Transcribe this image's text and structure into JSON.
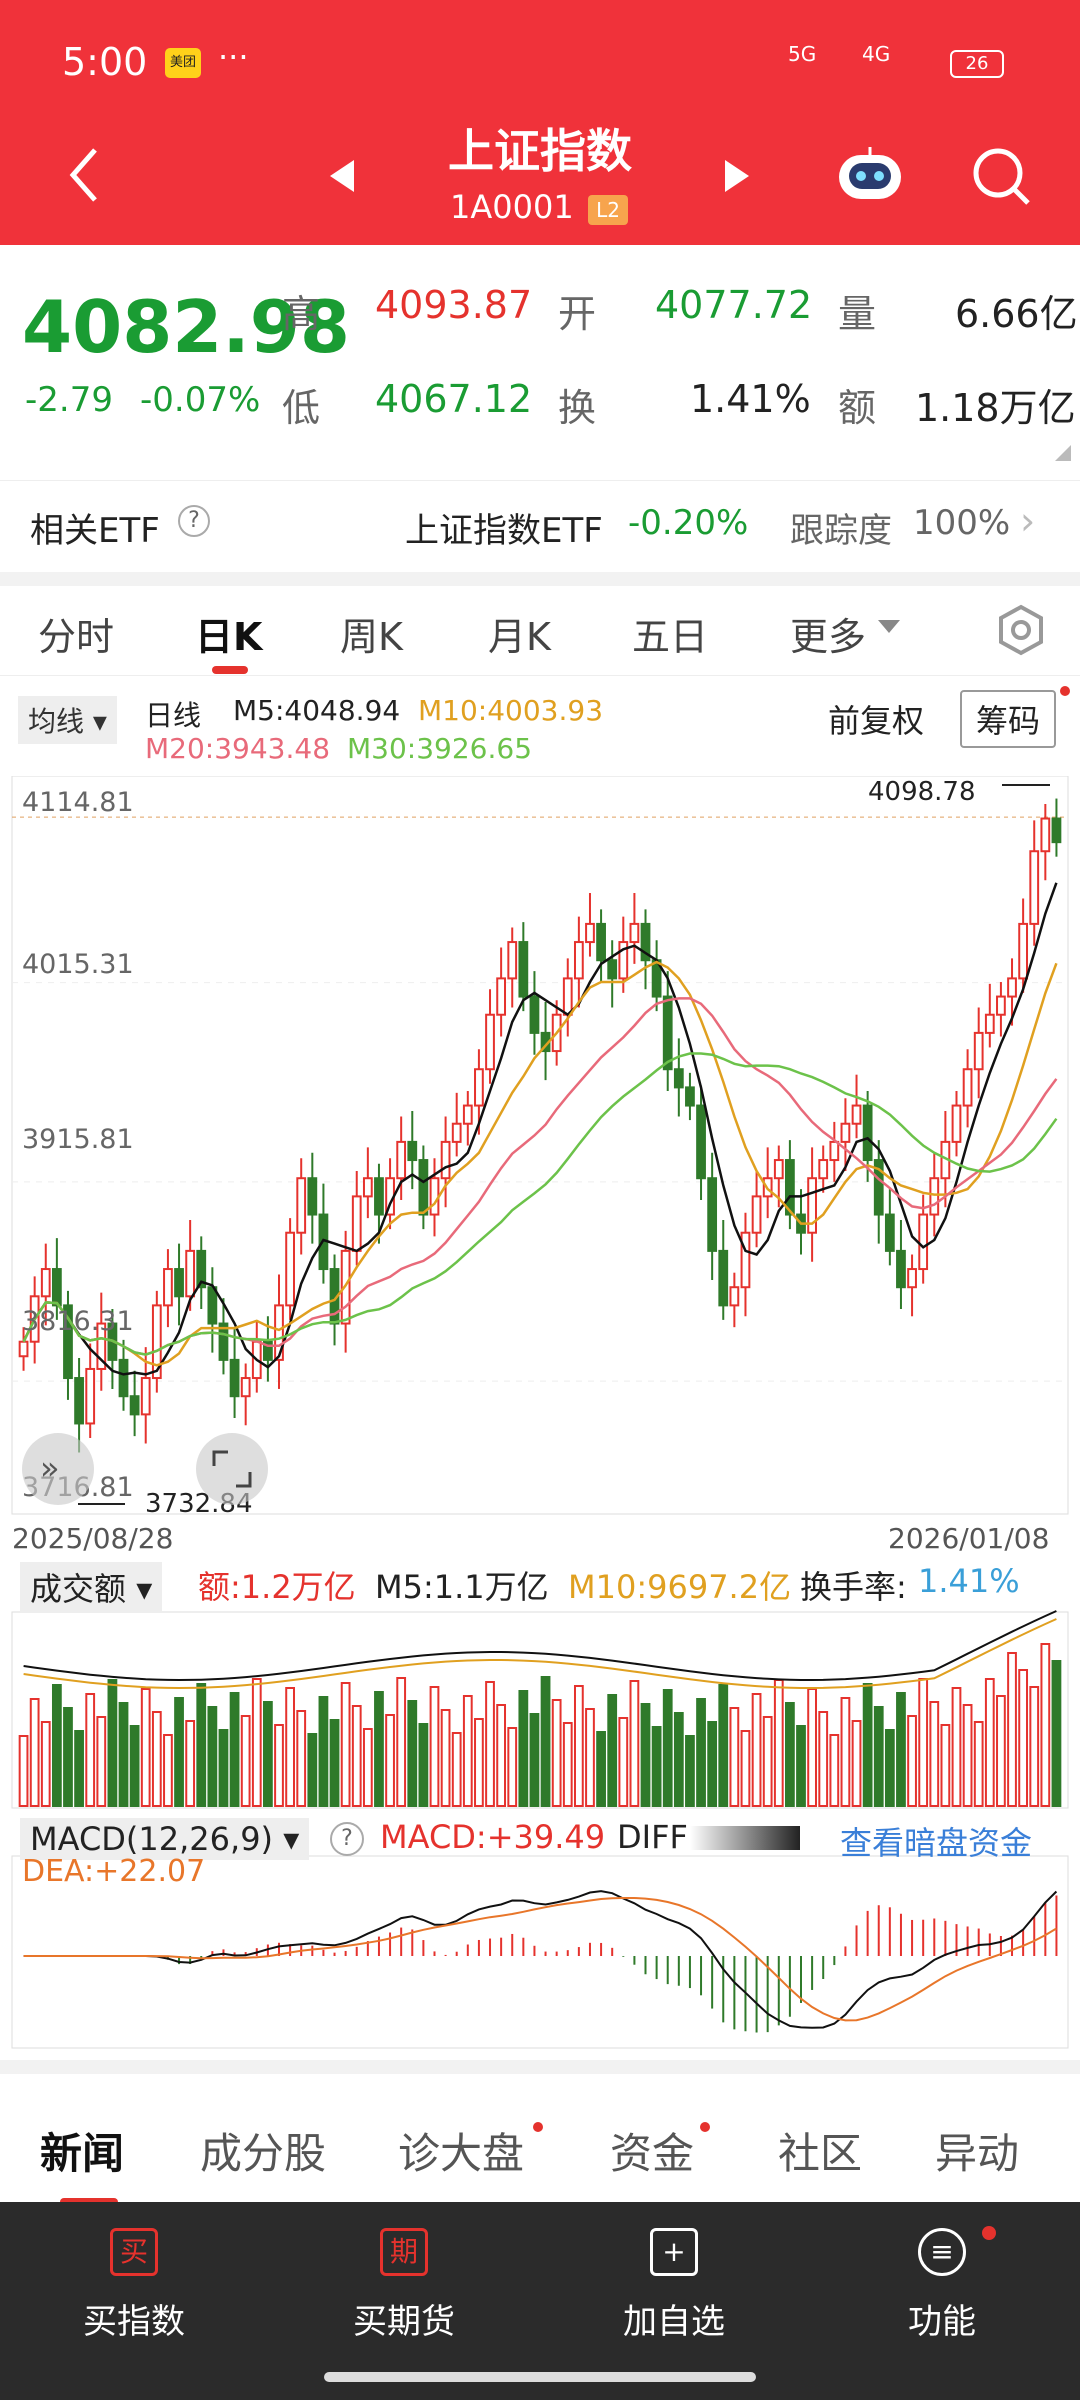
{
  "status": {
    "time": "5:00",
    "app_badge": "美团",
    "more": "···",
    "net1": "5G",
    "net2": "4G",
    "battery": "26"
  },
  "header": {
    "title": "上证指数",
    "code": "1A0001",
    "level": "L2"
  },
  "quote": {
    "price": "4082.98",
    "change": "-2.79",
    "change_pct": "-0.07%",
    "high_label": "高",
    "high": "4093.87",
    "open_label": "开",
    "open": "4077.72",
    "vol_label": "量",
    "vol": "6.66亿",
    "low_label": "低",
    "low": "4067.12",
    "turnover_label": "换",
    "turnover": "1.41%",
    "amount_label": "额",
    "amount": "1.18万亿"
  },
  "etf": {
    "label": "相关ETF",
    "name": "上证指数ETF",
    "pct": "-0.20%",
    "track_label": "跟踪度",
    "track": "100%"
  },
  "tabs": [
    "分时",
    "日K",
    "周K",
    "月K",
    "五日",
    "更多"
  ],
  "ma": {
    "selector": "均线",
    "period": "日线",
    "m5": "M5:4048.94",
    "m10": "M10:4003.93",
    "m20": "M20:3943.48",
    "m30": "M30:3926.65",
    "adjust": "前复权",
    "chip": "筹码"
  },
  "kline": {
    "yticks": [
      "4114.81",
      "4015.31",
      "3915.81",
      "3816.31",
      "3716.81"
    ],
    "max_label": "4098.78",
    "min_label": "3732.84",
    "start_date": "2025/08/28",
    "end_date": "2026/01/08"
  },
  "volume": {
    "selector": "成交额",
    "amt": "额:1.2万亿",
    "m5": "M5:1.1万亿",
    "m10": "M10:9697.2亿",
    "turnover_label": "换手率:",
    "turnover": "1.41%"
  },
  "macd": {
    "selector": "MACD(12,26,9)",
    "macd": "MACD:+39.49",
    "diff": "DIFF",
    "dea": "DEA:+22.07",
    "link": "查看暗盘资金"
  },
  "news_tabs": [
    "新闻",
    "成分股",
    "诊大盘",
    "资金",
    "社区",
    "异动"
  ],
  "bottom": [
    {
      "icon": "买",
      "label": "买指数"
    },
    {
      "icon": "期",
      "label": "买期货"
    },
    {
      "icon": "+",
      "label": "加自选"
    },
    {
      "icon": "≡",
      "label": "功能"
    }
  ],
  "colors": {
    "brand": "#f0323a",
    "up": "#e5322d",
    "down": "#2f7a2a",
    "ma5": "#111111",
    "ma10": "#e0a020",
    "ma20": "#e86a7a",
    "ma30": "#6cc24a"
  },
  "chart_data": {
    "type": "candlestick",
    "x_start": "2025/08/28",
    "x_end": "2026/01/08",
    "ylim": [
      3716.81,
      4114.81
    ],
    "max": 4098.78,
    "min": 3732.84,
    "close": [
      3810,
      3835,
      3850,
      3830,
      3790,
      3765,
      3795,
      3820,
      3800,
      3780,
      3770,
      3790,
      3830,
      3850,
      3835,
      3860,
      3840,
      3820,
      3800,
      3780,
      3790,
      3810,
      3800,
      3830,
      3870,
      3900,
      3880,
      3850,
      3820,
      3860,
      3890,
      3900,
      3880,
      3900,
      3920,
      3910,
      3880,
      3900,
      3920,
      3930,
      3940,
      3960,
      3990,
      4010,
      4030,
      4000,
      3980,
      3970,
      3990,
      4010,
      4030,
      4040,
      4020,
      4010,
      4030,
      4040,
      4020,
      4000,
      3960,
      3950,
      3940,
      3900,
      3860,
      3830,
      3840,
      3870,
      3890,
      3900,
      3910,
      3880,
      3870,
      3900,
      3910,
      3920,
      3930,
      3940,
      3910,
      3880,
      3860,
      3840,
      3850,
      3880,
      3900,
      3920,
      3940,
      3960,
      3980,
      3990,
      4000,
      4010,
      4040,
      4080,
      4098,
      4085
    ]
  }
}
